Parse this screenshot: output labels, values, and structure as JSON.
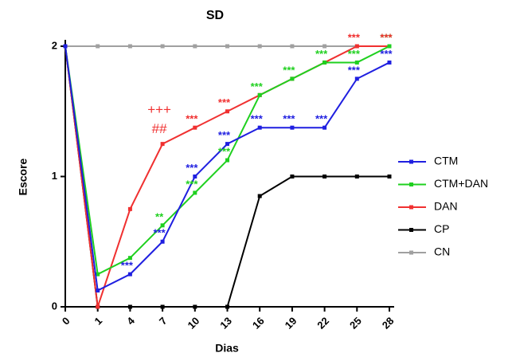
{
  "chart_data": {
    "type": "line",
    "title": "SD",
    "xlabel": "Dias",
    "ylabel": "Escore",
    "categories": [
      "0",
      "1",
      "4",
      "7",
      "10",
      "13",
      "16",
      "19",
      "22",
      "25",
      "28"
    ],
    "ylim": [
      0,
      2
    ],
    "yticks": [
      0,
      1,
      2
    ],
    "series": [
      {
        "name": "CTM",
        "color": "#1f1fe0",
        "values": [
          2,
          0.125,
          0.25,
          0.5,
          1.0,
          1.25,
          1.375,
          1.375,
          1.375,
          1.75,
          1.875
        ],
        "annotations": [
          null,
          null,
          "***",
          "***",
          "***",
          "***",
          "***",
          "***",
          "***",
          "***",
          "***"
        ]
      },
      {
        "name": "CTM+DAN",
        "color": "#1fd01f",
        "values": [
          2,
          0.25,
          0.375,
          0.625,
          0.875,
          1.125,
          1.625,
          1.75,
          1.875,
          1.875,
          2
        ],
        "annotations": [
          null,
          null,
          null,
          "**",
          "***",
          "***",
          "***",
          "***",
          "***",
          "***",
          "***"
        ]
      },
      {
        "name": "DAN",
        "color": "#f03030",
        "values": [
          2,
          0,
          0.75,
          1.25,
          1.375,
          1.5,
          1.625,
          1.75,
          1.875,
          2,
          2
        ],
        "annotations": [
          null,
          null,
          null,
          [
            "+++",
            "##"
          ],
          "***",
          "***",
          null,
          null,
          null,
          "***",
          "***"
        ]
      },
      {
        "name": "CP",
        "color": "#000000",
        "values": [
          2,
          0,
          0,
          0,
          0,
          0,
          0.85,
          1,
          1,
          1,
          1
        ],
        "annotations": [
          null,
          null,
          null,
          null,
          null,
          null,
          null,
          null,
          null,
          null,
          null
        ]
      },
      {
        "name": "CN",
        "color": "#a0a0a0",
        "values": [
          2,
          2,
          2,
          2,
          2,
          2,
          2,
          2,
          2,
          2,
          2
        ],
        "annotations": [
          null,
          null,
          null,
          null,
          null,
          null,
          null,
          null,
          null,
          null,
          null
        ]
      }
    ]
  }
}
